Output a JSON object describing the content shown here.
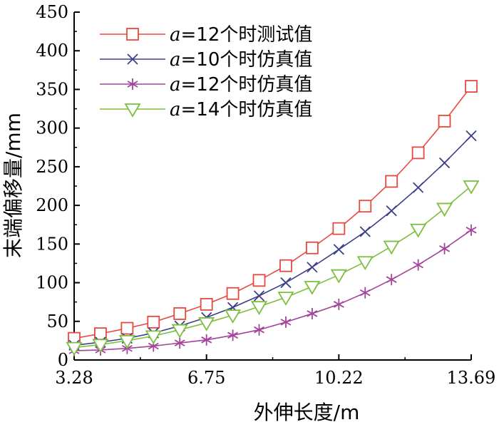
{
  "chart_data": {
    "type": "line",
    "xlabel": "外伸长度/m",
    "ylabel": "末端偏移量/mm",
    "xlim": [
      3.28,
      13.69
    ],
    "ylim": [
      0,
      450
    ],
    "x_ticks": [
      "3.28",
      "6.75",
      "10.22",
      "13.69"
    ],
    "y_ticks": [
      "0",
      "50",
      "100",
      "150",
      "200",
      "250",
      "300",
      "350",
      "400",
      "450"
    ],
    "grid": false,
    "legend_position": "top-left",
    "x": [
      3.28,
      3.97,
      4.67,
      5.36,
      6.05,
      6.75,
      7.44,
      8.13,
      8.83,
      9.52,
      10.22,
      10.91,
      11.6,
      12.3,
      12.99,
      13.69
    ],
    "series": [
      {
        "name": "a=12个时测试值",
        "name_italic": "a",
        "name_rest": "=12个时测试值",
        "color": "#e8493f",
        "marker": "square",
        "values": [
          28,
          34,
          41,
          49,
          60,
          72,
          86,
          103,
          122,
          145,
          170,
          199,
          231,
          268,
          309,
          354
        ]
      },
      {
        "name": "a=10个时仿真值",
        "name_italic": "a",
        "name_rest": "=10个时仿真值",
        "color": "#3b3f86",
        "marker": "x",
        "values": [
          19,
          23,
          28,
          35,
          44,
          55,
          68,
          83,
          100,
          120,
          143,
          166,
          193,
          223,
          255,
          290
        ]
      },
      {
        "name": "a=12个时仿真值",
        "name_italic": "a",
        "name_rest": "=12个时仿真值",
        "color": "#a3449b",
        "marker": "asterisk",
        "values": [
          12,
          13,
          15,
          18,
          22,
          26,
          32,
          39,
          49,
          60,
          72,
          87,
          104,
          123,
          144,
          168
        ]
      },
      {
        "name": "a=14个时仿真值",
        "name_italic": "a",
        "name_rest": "=14个时仿真值",
        "color": "#7cbf3f",
        "marker": "triangle-down",
        "values": [
          16,
          20,
          25,
          31,
          39,
          48,
          58,
          69,
          81,
          95,
          110,
          127,
          147,
          169,
          196,
          225
        ]
      }
    ]
  }
}
